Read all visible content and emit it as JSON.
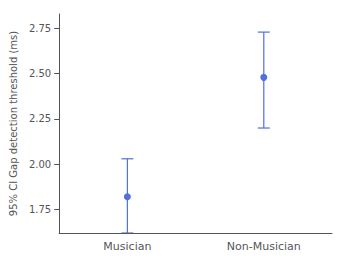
{
  "chart_data": {
    "type": "errorbar",
    "ylabel": "95% CI Gap detection threshold (ms)",
    "categories": [
      "Musician",
      "Non-Musician"
    ],
    "values": [
      1.82,
      2.48
    ],
    "lower_errors": [
      0.2,
      0.28
    ],
    "upper_errors": [
      0.21,
      0.25
    ],
    "ylim": [
      1.62,
      2.83
    ],
    "yticks": [
      1.75,
      {
        "value": 2.0,
        "label": "2.00"
      },
      2.25,
      {
        "value": 2.5,
        "label": "2.50"
      },
      2.75
    ],
    "grid": false
  }
}
